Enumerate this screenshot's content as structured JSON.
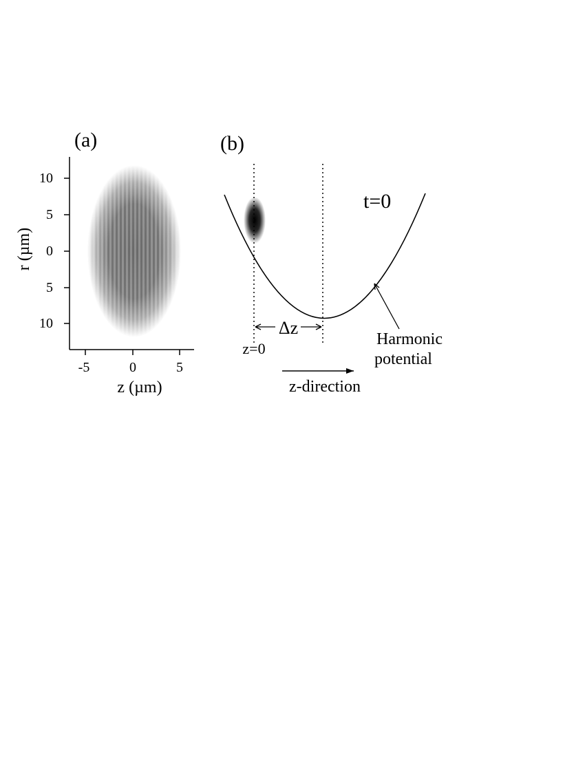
{
  "panel_a": {
    "label": "(a)",
    "y_ticks": [
      "10",
      "5",
      "0",
      "5",
      "10"
    ],
    "x_ticks": [
      "-5",
      "0",
      "5"
    ],
    "ylabel": "r (µm)",
    "xlabel": "z (µm)"
  },
  "panel_b": {
    "label": "(b)",
    "time_label": "t=0",
    "dz_label": "Δz",
    "z0_label": "z=0",
    "potential_label_1": "Harmonic",
    "potential_label_2": "potential",
    "direction_label": "z-direction"
  }
}
